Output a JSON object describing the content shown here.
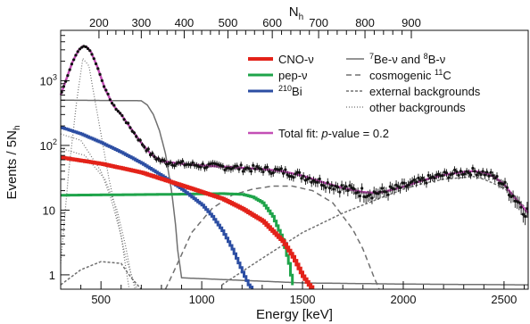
{
  "chart_data": {
    "type": "line",
    "xlabel": "Energy [keV]",
    "ylabel": "Events / 5N",
    "ylabel_sub": "h",
    "top_axis_label": "N",
    "top_axis_label_sub": "h",
    "xlim": [
      300,
      2620
    ],
    "ylim": [
      0.6,
      6000
    ],
    "y_scale": "log",
    "x_ticks": [
      500,
      1000,
      1500,
      2000,
      2500
    ],
    "y_ticks": [
      {
        "value": 1,
        "label": "1"
      },
      {
        "value": 10,
        "label": "10"
      },
      {
        "value": 100,
        "label": "10",
        "sup": "2"
      },
      {
        "value": 1000,
        "label": "10",
        "sup": "3"
      }
    ],
    "top_ticks": [
      {
        "label": "200",
        "energy": 490
      },
      {
        "label": "300",
        "energy": 700
      },
      {
        "label": "400",
        "energy": 913
      },
      {
        "label": "500",
        "energy": 1130
      },
      {
        "label": "600",
        "energy": 1350
      },
      {
        "label": "700",
        "energy": 1580
      },
      {
        "label": "800",
        "energy": 1810
      },
      {
        "label": "900",
        "energy": 2040
      }
    ],
    "legend": [
      {
        "key": "cno",
        "label": "CNO-ν",
        "color": "#e32219",
        "style": "solid",
        "width": 4
      },
      {
        "key": "pep",
        "label": "pep-ν",
        "color": "#1fa44a",
        "style": "solid",
        "width": 3
      },
      {
        "key": "bi",
        "label": "Bi",
        "pre_sup": "210",
        "color": "#2c4ea3",
        "style": "solid",
        "width": 3
      },
      {
        "key": "be8b",
        "label": "Be-ν and ",
        "pre_sup": "7",
        "mid_sup": "8",
        "tail": "B-ν",
        "color": "#707070",
        "style": "solid",
        "width": 1.5
      },
      {
        "key": "c11",
        "label": "cosmogenic ",
        "post_sup": "11",
        "tail": "C",
        "color": "#707070",
        "style": "dashed",
        "width": 1.5
      },
      {
        "key": "ext",
        "label": "external backgrounds",
        "color": "#707070",
        "style": "dense-dashed",
        "width": 1.5
      },
      {
        "key": "other",
        "label": "other backgrounds",
        "color": "#707070",
        "style": "dotted",
        "width": 1.2
      },
      {
        "key": "total",
        "label": "Total fit: ",
        "italic": "p",
        "tail": "-value = 0.2",
        "color": "#c34fb6",
        "style": "solid",
        "width": 2.5
      }
    ],
    "series": [
      {
        "key": "cno",
        "x": [
          300,
          500,
          700,
          900,
          1000,
          1100,
          1200,
          1300,
          1400,
          1450,
          1500,
          1530,
          1550
        ],
        "y": [
          65,
          52,
          38,
          24,
          19,
          15,
          10.5,
          6.8,
          3.3,
          1.9,
          0.95,
          0.7,
          0.6
        ]
      },
      {
        "key": "pep",
        "x": [
          300,
          800,
          1100,
          1200,
          1250,
          1300,
          1350,
          1400,
          1430,
          1445,
          1455
        ],
        "y": [
          17,
          17.5,
          18,
          17.5,
          16,
          13,
          8,
          3.5,
          1.5,
          0.8,
          0.6
        ]
      },
      {
        "key": "bi",
        "x": [
          300,
          400,
          500,
          600,
          700,
          800,
          900,
          1000,
          1050,
          1100,
          1150,
          1200,
          1230,
          1250
        ],
        "y": [
          190,
          150,
          110,
          78,
          53,
          34,
          21,
          12,
          8,
          4.8,
          2.5,
          1.1,
          0.7,
          0.6
        ]
      },
      {
        "key": "be8b",
        "x": [
          300,
          700,
          730,
          760,
          790,
          820,
          850,
          870,
          880,
          900,
          1500,
          2000,
          2620
        ],
        "y": [
          500,
          490,
          420,
          300,
          170,
          75,
          20,
          6,
          2.5,
          0.9,
          0.75,
          0.72,
          0.7
        ]
      },
      {
        "key": "c11",
        "x": [
          820,
          880,
          950,
          1050,
          1150,
          1250,
          1350,
          1450,
          1550,
          1650,
          1750,
          1800,
          1850,
          1880
        ],
        "y": [
          0.6,
          1.5,
          4.5,
          10.5,
          17,
          21,
          23.5,
          23.5,
          20,
          13,
          5,
          2.5,
          1,
          0.6
        ]
      },
      {
        "key": "ext",
        "x": [
          1100,
          1300,
          1500,
          1700,
          1900,
          2000,
          2100,
          2200,
          2300,
          2350,
          2400,
          2500,
          2620
        ],
        "y": [
          0.7,
          1.8,
          4.5,
          9,
          16,
          21,
          26,
          30,
          32,
          33,
          30,
          22,
          10
        ]
      },
      {
        "key": "ext_low",
        "x": [
          300,
          400,
          500,
          600,
          650,
          700
        ],
        "y": [
          0.7,
          1.2,
          1.6,
          1.5,
          0.9,
          0.6
        ]
      },
      {
        "key": "other",
        "x": [
          300,
          340,
          380,
          410,
          440,
          470,
          500,
          540,
          580,
          620,
          650,
          680
        ],
        "y": [
          1.5,
          40,
          500,
          2200,
          1700,
          500,
          150,
          30,
          8,
          2,
          1,
          0.6
        ]
      },
      {
        "key": "other2",
        "x": [
          300,
          400,
          500,
          550,
          600,
          620,
          640
        ],
        "y": [
          150,
          120,
          40,
          15,
          4,
          1.5,
          0.6
        ]
      },
      {
        "key": "other3",
        "x": [
          300,
          420,
          520,
          580,
          620,
          650,
          670
        ],
        "y": [
          90,
          70,
          30,
          10,
          3,
          1,
          0.6
        ]
      },
      {
        "key": "total",
        "x": [
          300,
          330,
          360,
          390,
          410,
          430,
          450,
          480,
          520,
          560,
          600,
          650,
          700,
          750,
          800,
          900,
          1000,
          1100,
          1200,
          1300,
          1400,
          1500,
          1600,
          1700,
          1800,
          1850,
          1900,
          2000,
          2100,
          2200,
          2300,
          2350,
          2400,
          2450,
          2500,
          2550,
          2620
        ],
        "y": [
          600,
          1100,
          2000,
          3000,
          3400,
          3300,
          2800,
          1700,
          750,
          420,
          300,
          180,
          110,
          72,
          57,
          52,
          49,
          47,
          45,
          43,
          40,
          34,
          27,
          22,
          19,
          18.5,
          19,
          23,
          29,
          35,
          39,
          40,
          38,
          33,
          25,
          16,
          9
        ]
      }
    ]
  }
}
